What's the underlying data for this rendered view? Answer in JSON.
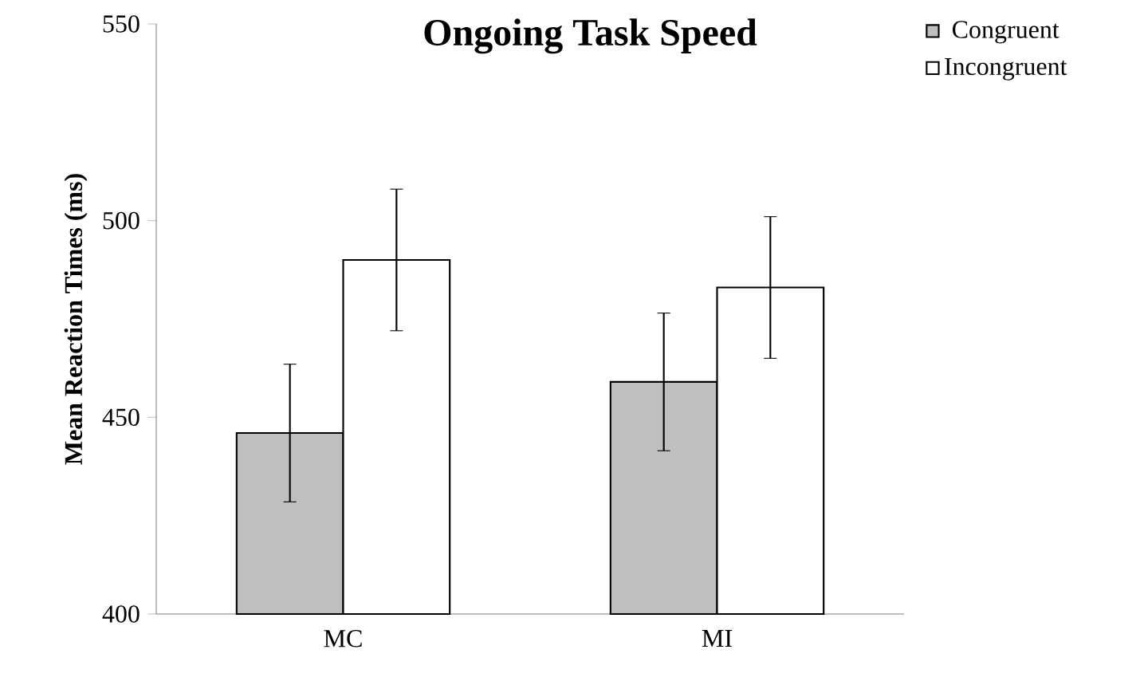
{
  "chart_data": {
    "type": "bar",
    "title": "Ongoing Task Speed",
    "ylabel": "Mean Reaction Times (ms)",
    "categories": [
      "MC",
      "MI"
    ],
    "series": [
      {
        "name": "Congruent",
        "color": "#bfbfbf",
        "values": [
          446,
          459
        ],
        "errors": [
          17.5,
          17.5
        ]
      },
      {
        "name": "Incongruent",
        "color": "#ffffff",
        "values": [
          490,
          483
        ],
        "errors": [
          18,
          18
        ]
      }
    ],
    "ylim": [
      400,
      550
    ],
    "yticks": [
      400,
      450,
      500,
      550
    ],
    "legend": "top right",
    "grid": false
  }
}
